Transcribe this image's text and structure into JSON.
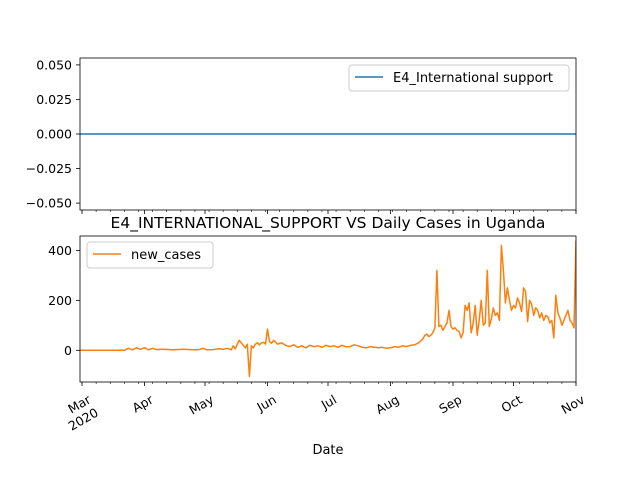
{
  "chart_data": [
    {
      "type": "line",
      "title": "",
      "xlabel": "",
      "ylabel": "",
      "ylim": [
        -0.055,
        0.055
      ],
      "yticks": [
        "0.050",
        "0.025",
        "0.000",
        "−0.025",
        "−0.050"
      ],
      "ytick_values": [
        0.05,
        0.025,
        0.0,
        -0.025,
        -0.05
      ],
      "legend_position": "upper right",
      "grid": false,
      "series": [
        {
          "name": "E4_International support",
          "color": "#1f77b4",
          "x": [
            "2020-02-29",
            "2020-11-01"
          ],
          "y": [
            0,
            0
          ]
        }
      ]
    },
    {
      "type": "line",
      "title": "E4_INTERNATIONAL_SUPPORT VS Daily Cases in Uganda",
      "xlabel": "Date",
      "ylabel": "",
      "ylim": [
        -127,
        458
      ],
      "yticks": [
        "0",
        "200",
        "400"
      ],
      "ytick_values": [
        0,
        200,
        400
      ],
      "xlim": [
        "2020-02-29",
        "2020-11-01"
      ],
      "xticks": [
        {
          "label": "Mar",
          "year": "2020",
          "date": "2020-03-01"
        },
        {
          "label": "Apr",
          "date": "2020-04-01"
        },
        {
          "label": "May",
          "date": "2020-05-01"
        },
        {
          "label": "Jun",
          "date": "2020-06-01"
        },
        {
          "label": "Jul",
          "date": "2020-07-01"
        },
        {
          "label": "Aug",
          "date": "2020-08-01"
        },
        {
          "label": "Sep",
          "date": "2020-09-01"
        },
        {
          "label": "Oct",
          "date": "2020-10-01"
        },
        {
          "label": "Nov",
          "date": "2020-11-01"
        }
      ],
      "legend_position": "upper left",
      "grid": false,
      "series": [
        {
          "name": "new_cases",
          "color": "#ff7f0e",
          "x": [
            "2020-02-29",
            "2020-03-05",
            "2020-03-10",
            "2020-03-15",
            "2020-03-20",
            "2020-03-22",
            "2020-03-24",
            "2020-03-26",
            "2020-03-28",
            "2020-03-30",
            "2020-04-01",
            "2020-04-03",
            "2020-04-05",
            "2020-04-07",
            "2020-04-10",
            "2020-04-15",
            "2020-04-20",
            "2020-04-25",
            "2020-04-28",
            "2020-04-30",
            "2020-05-02",
            "2020-05-05",
            "2020-05-08",
            "2020-05-10",
            "2020-05-12",
            "2020-05-14",
            "2020-05-15",
            "2020-05-16",
            "2020-05-17",
            "2020-05-18",
            "2020-05-20",
            "2020-05-21",
            "2020-05-22",
            "2020-05-23",
            "2020-05-24",
            "2020-05-25",
            "2020-05-26",
            "2020-05-27",
            "2020-05-28",
            "2020-05-29",
            "2020-05-30",
            "2020-05-31",
            "2020-06-01",
            "2020-06-02",
            "2020-06-03",
            "2020-06-04",
            "2020-06-06",
            "2020-06-08",
            "2020-06-10",
            "2020-06-12",
            "2020-06-14",
            "2020-06-16",
            "2020-06-18",
            "2020-06-20",
            "2020-06-22",
            "2020-06-24",
            "2020-06-26",
            "2020-06-28",
            "2020-06-30",
            "2020-07-02",
            "2020-07-04",
            "2020-07-06",
            "2020-07-08",
            "2020-07-10",
            "2020-07-12",
            "2020-07-14",
            "2020-07-16",
            "2020-07-18",
            "2020-07-20",
            "2020-07-22",
            "2020-07-24",
            "2020-07-26",
            "2020-07-28",
            "2020-07-30",
            "2020-08-01",
            "2020-08-03",
            "2020-08-05",
            "2020-08-07",
            "2020-08-09",
            "2020-08-11",
            "2020-08-13",
            "2020-08-15",
            "2020-08-17",
            "2020-08-18",
            "2020-08-19",
            "2020-08-20",
            "2020-08-21",
            "2020-08-22",
            "2020-08-23",
            "2020-08-24",
            "2020-08-25",
            "2020-08-26",
            "2020-08-27",
            "2020-08-28",
            "2020-08-29",
            "2020-08-30",
            "2020-08-31",
            "2020-09-01",
            "2020-09-02",
            "2020-09-03",
            "2020-09-04",
            "2020-09-05",
            "2020-09-06",
            "2020-09-07",
            "2020-09-08",
            "2020-09-09",
            "2020-09-10",
            "2020-09-11",
            "2020-09-12",
            "2020-09-13",
            "2020-09-14",
            "2020-09-15",
            "2020-09-16",
            "2020-09-17",
            "2020-09-18",
            "2020-09-19",
            "2020-09-20",
            "2020-09-21",
            "2020-09-22",
            "2020-09-23",
            "2020-09-24",
            "2020-09-25",
            "2020-09-26",
            "2020-09-27",
            "2020-09-28",
            "2020-09-29",
            "2020-09-30",
            "2020-10-01",
            "2020-10-02",
            "2020-10-03",
            "2020-10-04",
            "2020-10-05",
            "2020-10-06",
            "2020-10-07",
            "2020-10-08",
            "2020-10-09",
            "2020-10-10",
            "2020-10-11",
            "2020-10-12",
            "2020-10-13",
            "2020-10-14",
            "2020-10-15",
            "2020-10-16",
            "2020-10-17",
            "2020-10-18",
            "2020-10-19",
            "2020-10-20",
            "2020-10-21",
            "2020-10-22",
            "2020-10-23",
            "2020-10-24",
            "2020-10-25",
            "2020-10-26",
            "2020-10-27",
            "2020-10-28",
            "2020-10-29",
            "2020-10-30",
            "2020-10-31",
            "2020-11-01"
          ],
          "y": [
            0,
            0,
            0,
            0,
            0,
            0,
            8,
            2,
            10,
            4,
            10,
            2,
            8,
            3,
            4,
            2,
            4,
            2,
            3,
            8,
            2,
            3,
            6,
            4,
            8,
            2,
            18,
            6,
            25,
            40,
            20,
            10,
            25,
            -105,
            18,
            10,
            25,
            30,
            22,
            30,
            32,
            25,
            85,
            35,
            28,
            40,
            25,
            30,
            20,
            15,
            22,
            12,
            18,
            10,
            20,
            15,
            18,
            12,
            20,
            15,
            18,
            12,
            20,
            14,
            15,
            22,
            18,
            12,
            10,
            15,
            12,
            10,
            12,
            8,
            10,
            15,
            12,
            18,
            15,
            20,
            22,
            30,
            45,
            60,
            65,
            55,
            60,
            70,
            90,
            320,
            95,
            100,
            80,
            95,
            110,
            160,
            95,
            85,
            90,
            80,
            75,
            50,
            70,
            180,
            160,
            190,
            70,
            110,
            180,
            60,
            120,
            200,
            100,
            110,
            320,
            95,
            125,
            170,
            140,
            150,
            120,
            420,
            320,
            190,
            250,
            200,
            160,
            180,
            170,
            210,
            190,
            155,
            250,
            235,
            115,
            200,
            185,
            140,
            170,
            160,
            130,
            150,
            120,
            140,
            135,
            110,
            120,
            50,
            220,
            150,
            130,
            100,
            120,
            140,
            160,
            120,
            110,
            90,
            440
          ]
        }
      ]
    }
  ],
  "colors": {
    "axes": "#000000",
    "background": "#ffffff"
  }
}
